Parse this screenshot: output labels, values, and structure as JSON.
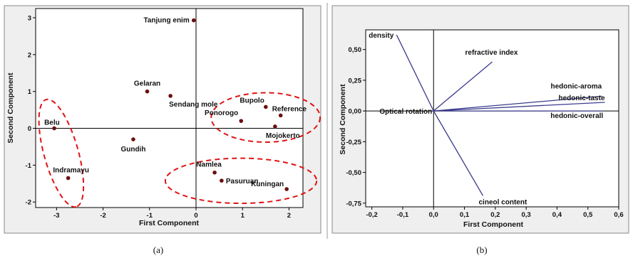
{
  "captions": [
    "(a)",
    "(b)"
  ],
  "colors": {
    "panel_bg": "#efefef",
    "plot_bg": "#ffffff",
    "score_point": "#6b0f0f",
    "loading_line": "#3b3b8c",
    "cluster_ellipse": "#e01414",
    "axis_line": "#000000"
  },
  "chart_data": [
    {
      "type": "scatter",
      "title": "",
      "xlabel": "First Component",
      "ylabel": "Second Component",
      "xlim": [
        -3.45,
        2.3
      ],
      "ylim": [
        -2.15,
        3.25
      ],
      "x_ticks": [
        -3,
        -2,
        -1,
        0,
        1,
        2
      ],
      "y_ticks": [
        -2,
        -1,
        0,
        1,
        2,
        3
      ],
      "reference_lines": {
        "x": 0,
        "y": 0
      },
      "grid": false,
      "points": [
        {
          "label": "Tanjung enim",
          "x": -0.05,
          "y": 2.93
        },
        {
          "label": "Gelaran",
          "x": -1.05,
          "y": 1.0
        },
        {
          "label": "Sendang mole",
          "x": -0.55,
          "y": 0.88
        },
        {
          "label": "Bupolo",
          "x": 1.5,
          "y": 0.58
        },
        {
          "label": "Reference",
          "x": 1.82,
          "y": 0.35
        },
        {
          "label": "Ponorogo",
          "x": 0.97,
          "y": 0.2
        },
        {
          "label": "Mojokerto",
          "x": 1.7,
          "y": 0.05
        },
        {
          "label": "Belu",
          "x": -3.05,
          "y": 0.0
        },
        {
          "label": "Gundih",
          "x": -1.35,
          "y": -0.3
        },
        {
          "label": "Namlea",
          "x": 0.4,
          "y": -1.2
        },
        {
          "label": "Pasuruan",
          "x": 0.55,
          "y": -1.42
        },
        {
          "label": "Kuningan",
          "x": 1.95,
          "y": -1.65
        },
        {
          "label": "Indramayu",
          "x": -2.75,
          "y": -1.35
        }
      ],
      "clusters": [
        {
          "members": [
            "Belu",
            "Indramayu"
          ]
        },
        {
          "members": [
            "Bupolo",
            "Reference",
            "Ponorogo",
            "Mojokerto"
          ]
        },
        {
          "members": [
            "Namlea",
            "Pasuruan",
            "Kuningan"
          ]
        }
      ]
    },
    {
      "type": "line",
      "title": "",
      "xlabel": "First Component",
      "ylabel": "Second Component",
      "xlim": [
        -0.22,
        0.6
      ],
      "ylim": [
        -0.78,
        0.66
      ],
      "x_ticks": [
        "-0,2",
        "-0,1",
        "0,0",
        "0,1",
        "0,2",
        "0,3",
        "0,4",
        "0,5",
        "0,6"
      ],
      "y_ticks": [
        "-0,75",
        "-0,50",
        "-0,25",
        "0,00",
        "0,25",
        "0,50"
      ],
      "reference_lines": {
        "x": 0,
        "y": 0
      },
      "grid": false,
      "vectors": [
        {
          "label": "density",
          "x": -0.12,
          "y": 0.62
        },
        {
          "label": "refractive index",
          "x": 0.19,
          "y": 0.4
        },
        {
          "label": "hedonic-aroma",
          "x": 0.545,
          "y": 0.12
        },
        {
          "label": "hedonic-taste",
          "x": 0.555,
          "y": 0.07
        },
        {
          "label": "hedonic-overall",
          "x": 0.545,
          "y": 0.0
        },
        {
          "label": "Optical rotation",
          "x": 0.0,
          "y": 0.0
        },
        {
          "label": "cineol content",
          "x": 0.16,
          "y": -0.69
        }
      ]
    }
  ]
}
